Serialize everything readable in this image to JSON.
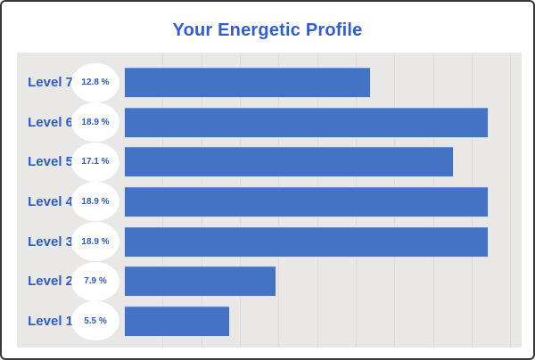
{
  "header": {
    "title": "Your Energetic Profile"
  },
  "chart_data": {
    "type": "bar",
    "orientation": "horizontal",
    "title": "Your Energetic Profile",
    "categories": [
      "Level 7",
      "Level 6",
      "Level 5",
      "Level 4",
      "Level 3",
      "Level 2",
      "Level 1"
    ],
    "values": [
      12.8,
      18.9,
      17.1,
      18.9,
      18.9,
      7.9,
      5.5
    ],
    "value_labels": [
      "12.8 %",
      "18.9 %",
      "17.1 %",
      "18.9 %",
      "18.9 %",
      "7.9 %",
      "5.5 %"
    ],
    "unit": "%",
    "xlim": [
      0,
      20.5
    ],
    "gridline_interval": 2,
    "gridline_max": 20,
    "grid": true,
    "legend": "none",
    "colors": {
      "bar": "#4472c4",
      "plot_background": "#e9e8e6",
      "gridline": "#dcdbd9",
      "title_text": "#2e5ed2",
      "label_text": "#2a5cc8",
      "badge_background": "#ffffff",
      "frame_border": "#383838",
      "page_background": "#ffffff"
    }
  }
}
